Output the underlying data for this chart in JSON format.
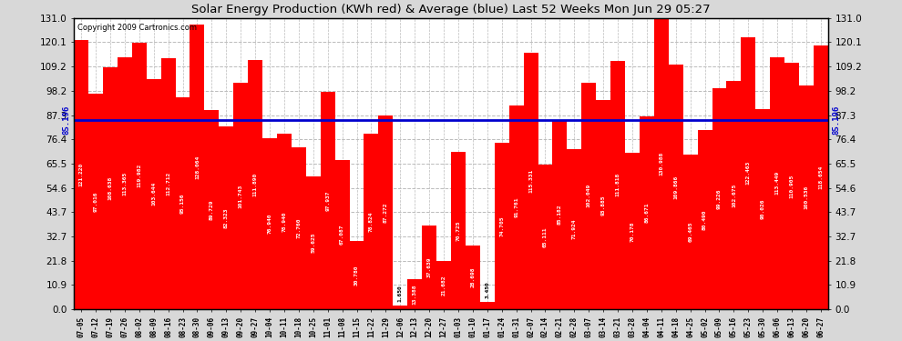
{
  "title": "Solar Energy Production (KWh red) & Average (blue) Last 52 Weeks Mon Jun 29 05:27",
  "copyright": "Copyright 2009 Cartronics.com",
  "average": 85.196,
  "bar_color": "#ff0000",
  "avg_line_color": "#0000cd",
  "background_color": "#d8d8d8",
  "plot_bg_color": "#ffffff",
  "grid_color": "#bbbbbb",
  "categories": [
    "07-05",
    "07-12",
    "07-19",
    "07-26",
    "08-02",
    "08-09",
    "08-16",
    "08-23",
    "08-30",
    "09-06",
    "09-13",
    "09-20",
    "09-27",
    "10-04",
    "10-11",
    "10-18",
    "10-25",
    "11-01",
    "11-08",
    "11-15",
    "11-22",
    "11-29",
    "12-06",
    "12-13",
    "12-20",
    "12-27",
    "01-03",
    "01-10",
    "01-17",
    "01-24",
    "01-31",
    "02-07",
    "02-14",
    "02-21",
    "02-28",
    "03-07",
    "03-14",
    "03-21",
    "03-28",
    "04-04",
    "04-11",
    "04-18",
    "04-25",
    "05-02",
    "05-09",
    "05-16",
    "05-23",
    "05-30",
    "06-06",
    "06-13",
    "06-20",
    "06-27"
  ],
  "values": [
    121.22,
    97.016,
    108.638,
    113.365,
    119.982,
    103.644,
    112.712,
    95.156,
    128.064,
    89.729,
    82.323,
    101.743,
    111.89,
    76.94,
    78.94,
    72.76,
    59.625,
    97.937,
    67.087,
    30.78,
    78.824,
    87.272,
    1.65,
    13.388,
    37.639,
    21.682,
    70.725,
    28.698,
    3.45,
    74.705,
    91.761,
    115.331,
    65.111,
    85.182,
    71.924,
    102.049,
    93.885,
    111.818,
    70.178,
    86.671,
    130.988,
    109.866,
    69.465,
    80.49,
    99.226,
    102.675,
    122.463,
    90.026,
    113.449,
    110.905,
    100.536,
    118.654
  ],
  "ylim_max": 131.0,
  "ylim_min": 0.0,
  "yticks": [
    0.0,
    10.9,
    21.8,
    32.7,
    43.7,
    54.6,
    65.5,
    76.4,
    87.3,
    98.2,
    109.2,
    120.1,
    131.0
  ],
  "avg_label": "85.196",
  "figsize": [
    9.9,
    3.75
  ],
  "dpi": 100
}
